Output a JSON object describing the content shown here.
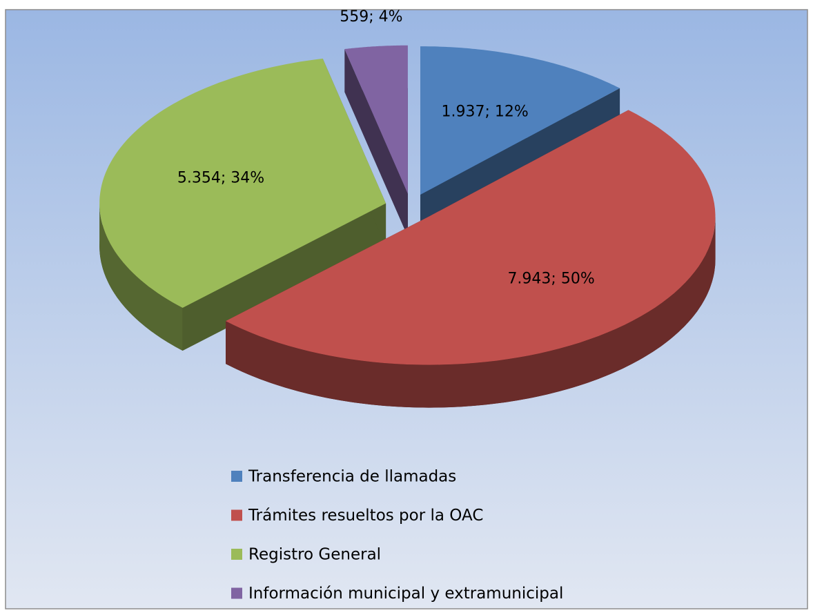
{
  "chart_data": {
    "type": "pie3d",
    "categories": [
      "Transferencia de llamadas",
      "Trámites resueltos por la OAC",
      "Registro General",
      "Información municipal y extramunicipal"
    ],
    "values": [
      1937,
      7943,
      5354,
      559
    ],
    "value_labels": [
      "1.937; 12%",
      "7.943; 50%",
      "5.354; 34%",
      "559; 4%"
    ],
    "colors": [
      "#4f81bd",
      "#c0504d",
      "#9bbb59",
      "#8064a2"
    ],
    "legend": "bottom"
  }
}
